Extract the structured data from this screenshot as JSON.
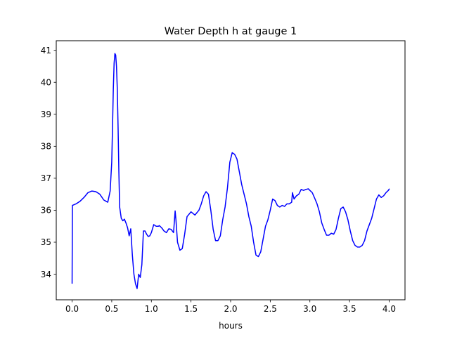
{
  "chart_data": {
    "type": "line",
    "title": "Water Depth h at gauge 1",
    "xlabel": "hours",
    "ylabel": "",
    "xlim": [
      -0.2,
      4.2
    ],
    "ylim": [
      33.2,
      41.3
    ],
    "xticks": [
      0.0,
      0.5,
      1.0,
      1.5,
      2.0,
      2.5,
      3.0,
      3.5,
      4.0
    ],
    "xtick_labels": [
      "0.0",
      "0.5",
      "1.0",
      "1.5",
      "2.0",
      "2.5",
      "3.0",
      "3.5",
      "4.0"
    ],
    "yticks": [
      34,
      35,
      36,
      37,
      38,
      39,
      40,
      41
    ],
    "ytick_labels": [
      "34",
      "35",
      "36",
      "37",
      "38",
      "39",
      "40",
      "41"
    ],
    "grid": false,
    "series": [
      {
        "color": "#0000ff",
        "x": [
          0.0,
          0.004,
          0.05,
          0.1,
          0.15,
          0.2,
          0.25,
          0.3,
          0.35,
          0.4,
          0.45,
          0.48,
          0.5,
          0.51,
          0.52,
          0.53,
          0.54,
          0.55,
          0.56,
          0.57,
          0.58,
          0.59,
          0.6,
          0.62,
          0.64,
          0.66,
          0.68,
          0.7,
          0.72,
          0.74,
          0.76,
          0.78,
          0.8,
          0.82,
          0.84,
          0.86,
          0.88,
          0.9,
          0.92,
          0.94,
          0.96,
          0.98,
          1.0,
          1.03,
          1.06,
          1.09,
          1.1,
          1.13,
          1.16,
          1.19,
          1.22,
          1.25,
          1.28,
          1.3,
          1.31,
          1.33,
          1.36,
          1.39,
          1.42,
          1.45,
          1.5,
          1.55,
          1.6,
          1.63,
          1.66,
          1.69,
          1.72,
          1.75,
          1.78,
          1.81,
          1.84,
          1.87,
          1.9,
          1.93,
          1.96,
          1.99,
          2.02,
          2.05,
          2.08,
          2.11,
          2.14,
          2.17,
          2.2,
          2.23,
          2.26,
          2.29,
          2.32,
          2.35,
          2.38,
          2.41,
          2.44,
          2.47,
          2.5,
          2.53,
          2.56,
          2.59,
          2.62,
          2.65,
          2.68,
          2.71,
          2.74,
          2.77,
          2.78,
          2.79,
          2.8,
          2.83,
          2.86,
          2.89,
          2.92,
          2.95,
          2.98,
          3.0,
          3.03,
          3.06,
          3.09,
          3.12,
          3.15,
          3.18,
          3.21,
          3.24,
          3.27,
          3.3,
          3.33,
          3.36,
          3.39,
          3.42,
          3.45,
          3.48,
          3.51,
          3.54,
          3.57,
          3.6,
          3.63,
          3.66,
          3.69,
          3.72,
          3.75,
          3.78,
          3.81,
          3.84,
          3.87,
          3.9,
          3.93,
          3.96,
          3.99,
          4.0
        ],
        "y": [
          33.72,
          36.15,
          36.2,
          36.28,
          36.4,
          36.55,
          36.6,
          36.58,
          36.5,
          36.32,
          36.25,
          36.6,
          37.5,
          38.6,
          39.8,
          40.6,
          40.9,
          40.85,
          40.5,
          39.8,
          38.6,
          37.2,
          36.1,
          35.75,
          35.67,
          35.72,
          35.6,
          35.45,
          35.2,
          35.42,
          34.6,
          34.0,
          33.7,
          33.55,
          34.0,
          33.9,
          34.3,
          35.35,
          35.35,
          35.25,
          35.18,
          35.2,
          35.3,
          35.55,
          35.5,
          35.5,
          35.52,
          35.45,
          35.35,
          35.3,
          35.42,
          35.4,
          35.3,
          35.98,
          35.7,
          35.0,
          34.75,
          34.8,
          35.25,
          35.8,
          35.95,
          35.85,
          36.0,
          36.2,
          36.45,
          36.58,
          36.5,
          36.0,
          35.4,
          35.05,
          35.05,
          35.2,
          35.7,
          36.1,
          36.7,
          37.5,
          37.8,
          37.75,
          37.6,
          37.2,
          36.8,
          36.5,
          36.2,
          35.8,
          35.5,
          35.0,
          34.6,
          34.55,
          34.7,
          35.1,
          35.5,
          35.7,
          36.0,
          36.35,
          36.3,
          36.15,
          36.1,
          36.15,
          36.12,
          36.2,
          36.2,
          36.25,
          36.55,
          36.45,
          36.35,
          36.45,
          36.5,
          36.65,
          36.62,
          36.65,
          36.67,
          36.62,
          36.55,
          36.38,
          36.2,
          35.95,
          35.6,
          35.4,
          35.22,
          35.22,
          35.28,
          35.25,
          35.4,
          35.75,
          36.05,
          36.1,
          35.95,
          35.7,
          35.35,
          35.05,
          34.9,
          34.85,
          34.85,
          34.9,
          35.05,
          35.35,
          35.55,
          35.75,
          36.05,
          36.35,
          36.48,
          36.4,
          36.45,
          36.55,
          36.62,
          36.66
        ]
      }
    ]
  }
}
